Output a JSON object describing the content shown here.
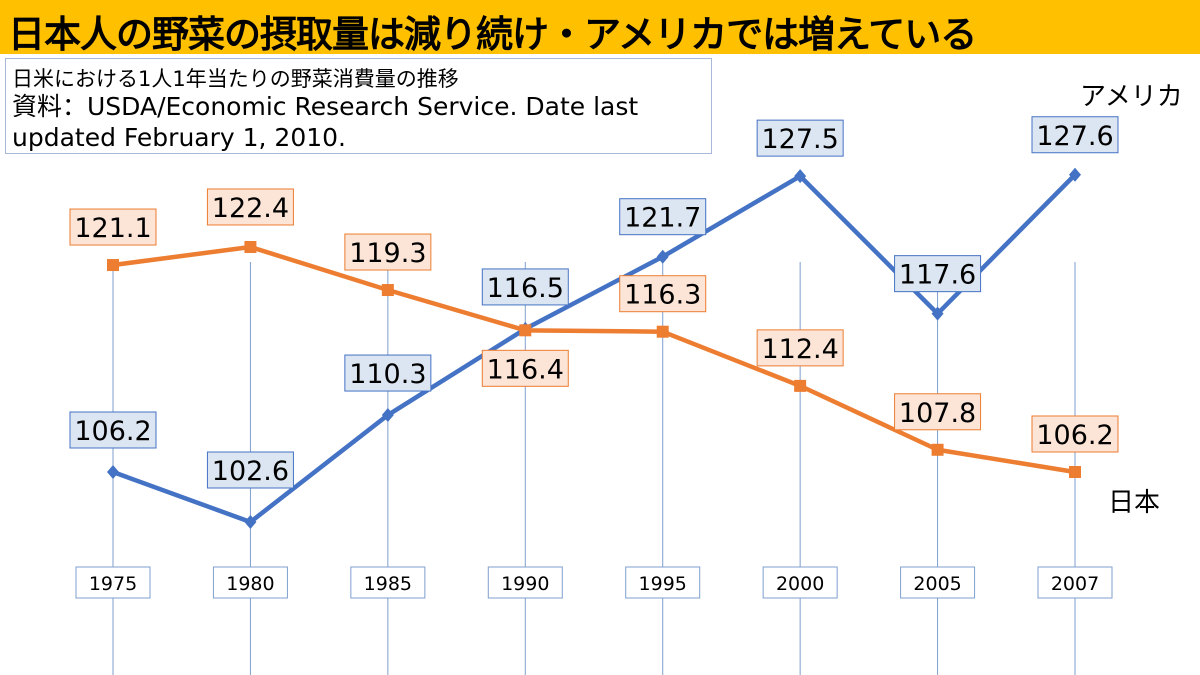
{
  "title": "日本人の野菜の摂取量は減り続け・アメリカでは増えている",
  "subtitle": "日米における1人1年当たりの野菜消費量の推移",
  "source": "資料：USDA/Economic Research Service. Date last updated February 1, 2010.",
  "colors": {
    "title_bg": "#ffc000",
    "usa": "#4472c4",
    "japan": "#ed7d31",
    "usa_label_bg": "#dce6f2",
    "japan_label_bg": "#fce4d6",
    "grid": "#7f9fcf"
  },
  "chart_data": {
    "type": "line",
    "categories": [
      "1975",
      "1980",
      "1985",
      "1990",
      "1995",
      "2000",
      "2005",
      "2007"
    ],
    "series": [
      {
        "name": "アメリカ",
        "values": [
          106.2,
          102.6,
          110.3,
          116.5,
          121.7,
          127.5,
          117.6,
          127.6
        ]
      },
      {
        "name": "日本",
        "values": [
          121.1,
          122.4,
          119.3,
          116.4,
          116.3,
          112.4,
          107.8,
          106.2
        ]
      }
    ],
    "grid": "vertical lines at each category",
    "legend": "series names at right end of lines"
  }
}
